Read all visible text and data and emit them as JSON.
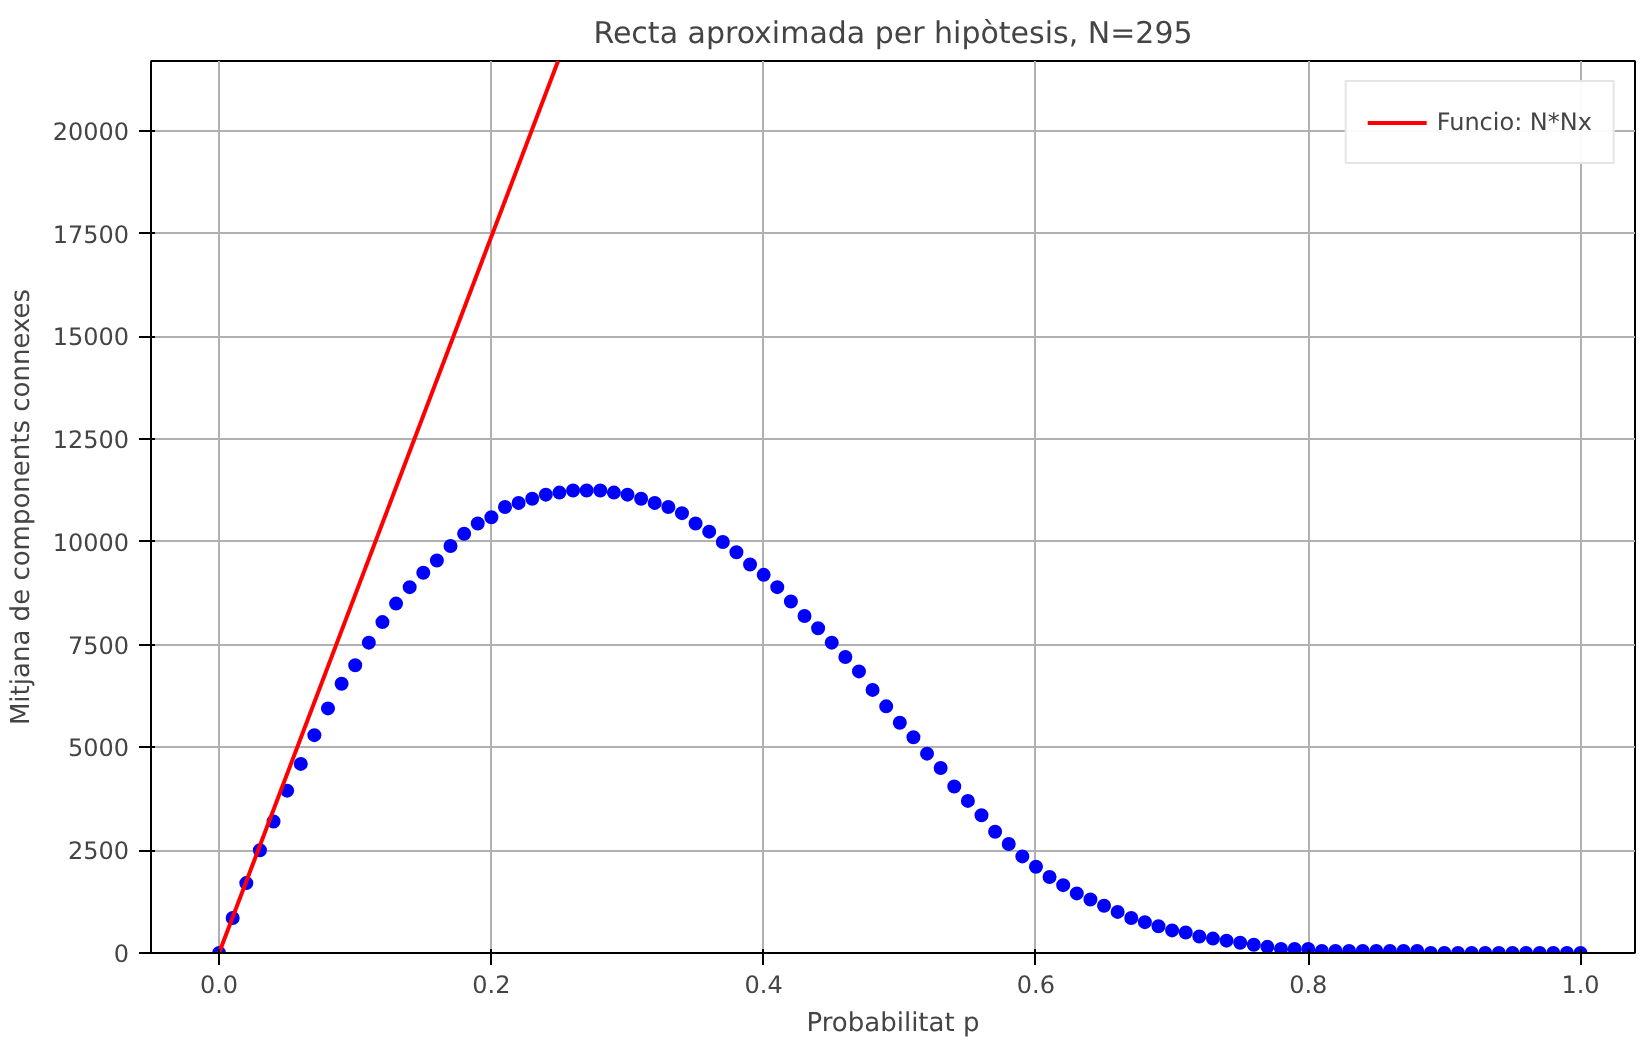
{
  "chart_data": {
    "type": "scatter",
    "title": "Recta aproximada per hipòtesis, N=295",
    "xlabel": "Probabilitat p",
    "ylabel": "Mitjana de components connexes",
    "xlim": [
      -0.05,
      1.04
    ],
    "ylim": [
      0,
      21700
    ],
    "xticks": [
      {
        "value": 0,
        "label": "0.0"
      },
      {
        "value": 0.2,
        "label": "0.2"
      },
      {
        "value": 0.4,
        "label": "0.4"
      },
      {
        "value": 0.6,
        "label": "0.6"
      },
      {
        "value": 0.8,
        "label": "0.8"
      },
      {
        "value": 1,
        "label": "1.0"
      }
    ],
    "yticks": [
      0,
      2500,
      5000,
      7500,
      10000,
      12500,
      15000,
      17500,
      20000
    ],
    "grid": true,
    "legend": "top right",
    "series": [
      {
        "color": "#0000ff",
        "marker": "circle",
        "x": [
          0,
          0.01,
          0.02,
          0.03,
          0.04,
          0.05,
          0.06,
          0.07,
          0.08,
          0.09,
          0.1,
          0.11,
          0.12,
          0.13,
          0.14,
          0.15,
          0.16,
          0.17,
          0.18,
          0.19,
          0.2,
          0.21,
          0.22,
          0.23,
          0.24,
          0.25,
          0.26,
          0.27,
          0.28,
          0.29,
          0.3,
          0.31,
          0.32,
          0.33,
          0.34,
          0.35,
          0.36,
          0.37,
          0.38,
          0.39,
          0.4,
          0.41,
          0.42,
          0.43,
          0.44,
          0.45,
          0.46,
          0.47,
          0.48,
          0.49,
          0.5,
          0.51,
          0.52,
          0.53,
          0.54,
          0.55,
          0.56,
          0.57,
          0.58,
          0.59,
          0.6,
          0.61,
          0.62,
          0.63,
          0.64,
          0.65,
          0.66,
          0.67,
          0.68,
          0.69,
          0.7,
          0.71,
          0.72,
          0.73,
          0.74,
          0.75,
          0.76,
          0.77,
          0.78,
          0.79,
          0.8,
          0.81,
          0.82,
          0.83,
          0.84,
          0.85,
          0.86,
          0.87,
          0.88,
          0.89,
          0.9,
          0.91,
          0.92,
          0.93,
          0.94,
          0.95,
          0.96,
          0.97,
          0.98,
          0.99,
          1.0
        ],
        "values": [
          0,
          850,
          1700,
          2500,
          3200,
          3950,
          4600,
          5300,
          5950,
          6550,
          7000,
          7550,
          8050,
          8500,
          8900,
          9250,
          9550,
          9900,
          10200,
          10450,
          10600,
          10850,
          10950,
          11050,
          11150,
          11200,
          11250,
          11250,
          11250,
          11200,
          11150,
          11050,
          10950,
          10850,
          10700,
          10450,
          10250,
          10000,
          9750,
          9450,
          9200,
          8900,
          8550,
          8200,
          7900,
          7550,
          7200,
          6850,
          6400,
          6000,
          5600,
          5250,
          4850,
          4500,
          4050,
          3700,
          3350,
          2950,
          2650,
          2350,
          2100,
          1850,
          1650,
          1450,
          1300,
          1150,
          1000,
          850,
          750,
          650,
          550,
          500,
          400,
          350,
          300,
          250,
          200,
          150,
          100,
          100,
          100,
          50,
          50,
          50,
          50,
          50,
          50,
          50,
          50,
          0,
          0,
          0,
          0,
          0,
          0,
          0,
          0,
          0,
          0,
          0,
          0
        ]
      },
      {
        "type": "line",
        "name": "Funcio: N*Nx",
        "color": "#ff0000",
        "x": [
          0,
          0.249
        ],
        "values": [
          0,
          21700
        ]
      }
    ]
  }
}
